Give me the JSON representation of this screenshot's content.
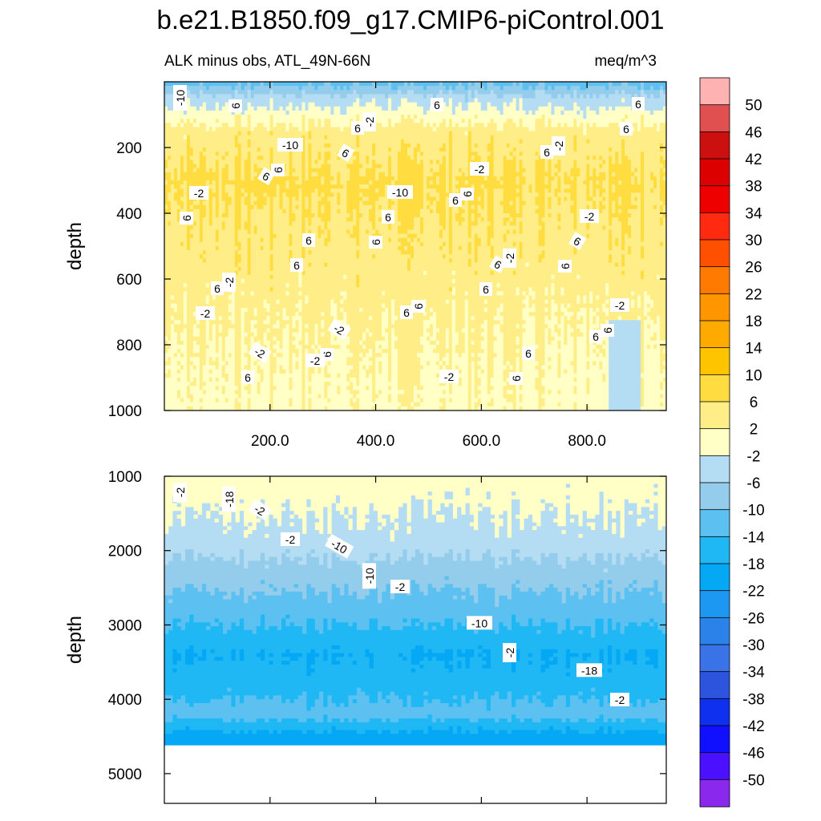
{
  "figure": {
    "title": "b.e21.B1850.f09_g17.CMIP6-piControl.001",
    "left_subtitle": "ALK minus obs, ATL_49N-66N",
    "right_subtitle": "meq/m^3"
  },
  "chart_data": [
    {
      "type": "heatmap",
      "subtype": "filled-contour",
      "panel": "upper",
      "ylabel": "depth",
      "xlabel": "",
      "xlim": [
        0,
        950
      ],
      "ylim": [
        1000,
        0
      ],
      "y_reversed": true,
      "x_ticks": [
        "200.0",
        "400.0",
        "600.0",
        "800.0"
      ],
      "x_tick_values": [
        200,
        400,
        600,
        800
      ],
      "y_ticks": [
        "200",
        "400",
        "600",
        "800",
        "1000"
      ],
      "y_tick_values": [
        200,
        400,
        600,
        800,
        1000
      ],
      "contour_labels": [
        "-10",
        "-10",
        "-10",
        "-2",
        "-2",
        "-2",
        "-2",
        "-2",
        "-2",
        "-2",
        "-2",
        "-2",
        "-2",
        "-2",
        "6",
        "6",
        "6",
        "6",
        "6",
        "6",
        "6",
        "6",
        "6",
        "6",
        "6",
        "6",
        "6",
        "6",
        "6",
        "6",
        "6",
        "6",
        "6",
        "6",
        "6",
        "6",
        "6",
        "6",
        "6",
        "6",
        "6",
        "6",
        "6",
        "-2",
        "-2"
      ],
      "profile": [
        {
          "depth": 0,
          "value": -12
        },
        {
          "depth": 50,
          "value": -4
        },
        {
          "depth": 150,
          "value": 4
        },
        {
          "depth": 300,
          "value": 7
        },
        {
          "depth": 500,
          "value": 5
        },
        {
          "depth": 700,
          "value": 3
        },
        {
          "depth": 1000,
          "value": 1
        }
      ],
      "east_column_value_below_700m": -3
    },
    {
      "type": "heatmap",
      "subtype": "filled-contour",
      "panel": "lower",
      "ylabel": "depth",
      "xlabel": "",
      "xlim": [
        0,
        950
      ],
      "ylim": [
        5400,
        1000
      ],
      "y_reversed": true,
      "x_tick_values": [
        200,
        400,
        600,
        800
      ],
      "y_ticks": [
        "1000",
        "2000",
        "3000",
        "4000",
        "5000"
      ],
      "y_tick_values": [
        1000,
        2000,
        3000,
        4000,
        5000
      ],
      "data_bottom_depth": 4620,
      "contour_labels": [
        "-2",
        "-2",
        "-2",
        "-2",
        "-2",
        "-2",
        "-10",
        "-10",
        "-18",
        "-18",
        "-10"
      ],
      "profile": [
        {
          "depth": 1000,
          "value": 0
        },
        {
          "depth": 1800,
          "value": -3
        },
        {
          "depth": 2300,
          "value": -8
        },
        {
          "depth": 2800,
          "value": -12
        },
        {
          "depth": 3400,
          "value": -18
        },
        {
          "depth": 3800,
          "value": -16
        },
        {
          "depth": 4200,
          "value": -12
        },
        {
          "depth": 4500,
          "value": -20
        }
      ]
    }
  ],
  "colorbar": {
    "levels": [
      "50",
      "46",
      "42",
      "38",
      "34",
      "30",
      "26",
      "22",
      "18",
      "14",
      "10",
      "6",
      "2",
      "-2",
      "-6",
      "-10",
      "-14",
      "-18",
      "-22",
      "-26",
      "-30",
      "-34",
      "-38",
      "-42",
      "-46",
      "-50"
    ],
    "colors": [
      "#ffb2b2",
      "#e05050",
      "#cc1010",
      "#dd0000",
      "#ee0000",
      "#ff2a10",
      "#ff5000",
      "#ff7a00",
      "#ff9600",
      "#ffaa00",
      "#ffc400",
      "#ffdd40",
      "#ffee88",
      "#ffffc6",
      "#b4dcf3",
      "#94cdec",
      "#5cc0f1",
      "#1fb8f5",
      "#05a8f5",
      "#1d98f2",
      "#2b83e9",
      "#3a72e8",
      "#2c54dc",
      "#1030f0",
      "#1010ff",
      "#4a10ff",
      "#8a28ee"
    ]
  }
}
